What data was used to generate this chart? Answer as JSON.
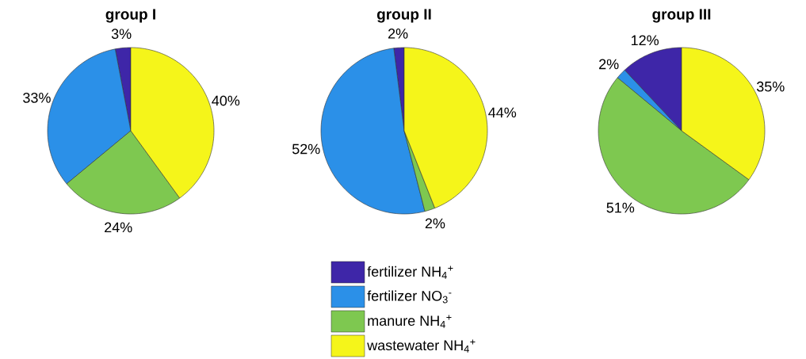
{
  "chart_data": [
    {
      "type": "pie",
      "title": "group I",
      "categories": [
        null,
        null,
        null,
        null
      ],
      "values": [
        3,
        33,
        24,
        40
      ],
      "value_labels": [
        "3%",
        "33%",
        "24%",
        "40%"
      ],
      "colors": [
        "#3e26a8",
        "#2b90e8",
        "#7ec850",
        "#f5f51a"
      ]
    },
    {
      "type": "pie",
      "title": "group II",
      "categories": [
        "fertilizer NH$_{4}$$^{+}$",
        "fertilizer NO$_{3}$$^{-}$",
        "manure NH$_{4}$$^{+}$",
        "wastewater NH$_{4}$$^{+}$"
      ],
      "values": [
        2,
        52,
        2,
        44
      ],
      "value_labels": [
        "2%",
        "52%",
        "2%",
        "44%"
      ],
      "colors": [
        "#3e26a8",
        "#2b90e8",
        "#7ec850",
        "#f5f51a"
      ],
      "legend": "bottom"
    },
    {
      "type": "pie",
      "title": "group III",
      "categories": [
        null,
        null,
        null,
        null
      ],
      "values": [
        12,
        2,
        51,
        35
      ],
      "value_labels": [
        "12%",
        "2%",
        "51%",
        "35%"
      ],
      "colors": [
        "#3e26a8",
        "#2b90e8",
        "#7ec850",
        "#f5f51a"
      ]
    }
  ]
}
